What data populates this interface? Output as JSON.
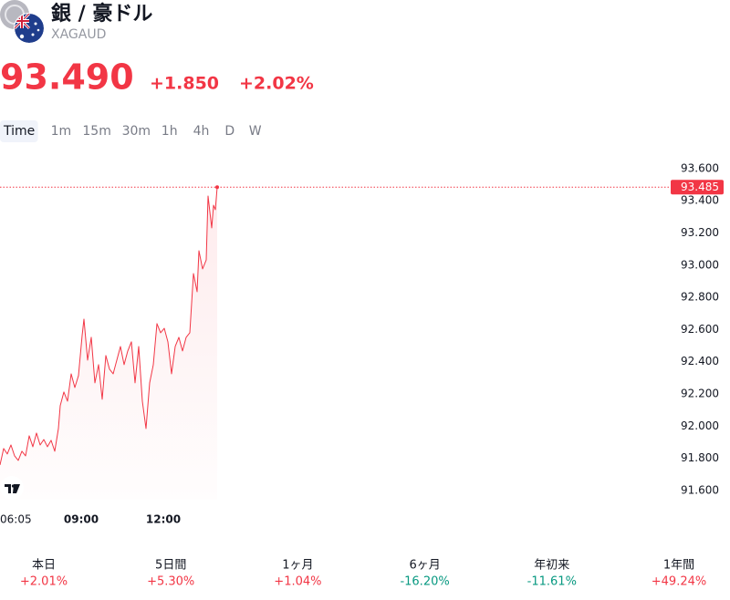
{
  "header": {
    "title": "銀 / 豪ドル",
    "symbol": "XAGAUD",
    "price": "93.490",
    "change": "+1.850",
    "change_pct": "+2.02%"
  },
  "timeframes": {
    "items": [
      "Time",
      "1m",
      "15m",
      "30m",
      "1h",
      "4h",
      "D",
      "W"
    ],
    "active": "Time"
  },
  "chart_data": {
    "type": "area",
    "color": "#f23645",
    "x": [
      "06:02",
      "06:10",
      "06:18",
      "06:26",
      "06:34",
      "06:42",
      "06:50",
      "06:58",
      "07:06",
      "07:14",
      "07:22",
      "07:30",
      "07:38",
      "07:46",
      "07:54",
      "08:02",
      "08:10",
      "08:14",
      "08:22",
      "08:30",
      "08:38",
      "08:46",
      "08:54",
      "09:02",
      "09:06",
      "09:14",
      "09:22",
      "09:30",
      "09:38",
      "09:46",
      "09:54",
      "10:02",
      "10:10",
      "10:18",
      "10:26",
      "10:34",
      "10:42",
      "10:50",
      "10:58",
      "11:06",
      "11:14",
      "11:22",
      "11:30",
      "11:38",
      "11:46",
      "11:54",
      "12:02",
      "12:10",
      "12:18",
      "12:26",
      "12:34",
      "12:42",
      "12:50",
      "12:58",
      "13:06",
      "13:14",
      "13:18",
      "13:26",
      "13:34",
      "13:38",
      "13:46",
      "13:50",
      "13:54",
      "13:58"
    ],
    "values": [
      91.759,
      91.861,
      91.827,
      91.883,
      91.815,
      91.787,
      91.844,
      91.815,
      91.94,
      91.872,
      91.957,
      91.883,
      91.917,
      91.872,
      91.912,
      91.844,
      91.985,
      92.127,
      92.212,
      92.155,
      92.325,
      92.24,
      92.314,
      92.563,
      92.665,
      92.41,
      92.552,
      92.269,
      92.382,
      92.167,
      92.439,
      92.354,
      92.325,
      92.41,
      92.495,
      92.382,
      92.467,
      92.524,
      92.269,
      92.495,
      92.155,
      91.985,
      92.269,
      92.382,
      92.637,
      92.58,
      92.608,
      92.524,
      92.325,
      92.495,
      92.552,
      92.467,
      92.552,
      92.58,
      92.948,
      92.835,
      93.09,
      92.977,
      93.033,
      93.43,
      93.232,
      93.373,
      93.345,
      93.485
    ],
    "xlim": [
      "06:02",
      "13:58"
    ],
    "xticks": [
      "06:05",
      "09:00",
      "12:00"
    ],
    "ylim": [
      91.543,
      93.713
    ],
    "yticks": [
      {
        "value": 93.6,
        "label": "93.600"
      },
      {
        "value": 93.4,
        "label": "93.400"
      },
      {
        "value": 93.2,
        "label": "93.200"
      },
      {
        "value": 93.0,
        "label": "93.000"
      },
      {
        "value": 92.8,
        "label": "92.800"
      },
      {
        "value": 92.6,
        "label": "92.600"
      },
      {
        "value": 92.4,
        "label": "92.400"
      },
      {
        "value": 92.2,
        "label": "92.200"
      },
      {
        "value": 92.0,
        "label": "92.000"
      },
      {
        "value": 91.8,
        "label": "91.800"
      },
      {
        "value": 91.6,
        "label": "91.600"
      }
    ],
    "last_price": {
      "value": 93.485,
      "label": "93.485"
    }
  },
  "performance": [
    {
      "label": "本日",
      "change": "+2.01%"
    },
    {
      "label": "5日間",
      "change": "+5.30%"
    },
    {
      "label": "1ヶ月",
      "change": "+1.04%"
    },
    {
      "label": "6ヶ月",
      "change": "-16.20%"
    },
    {
      "label": "年初来",
      "change": "-11.61%"
    },
    {
      "label": "1年間",
      "change": "+49.24%"
    }
  ]
}
